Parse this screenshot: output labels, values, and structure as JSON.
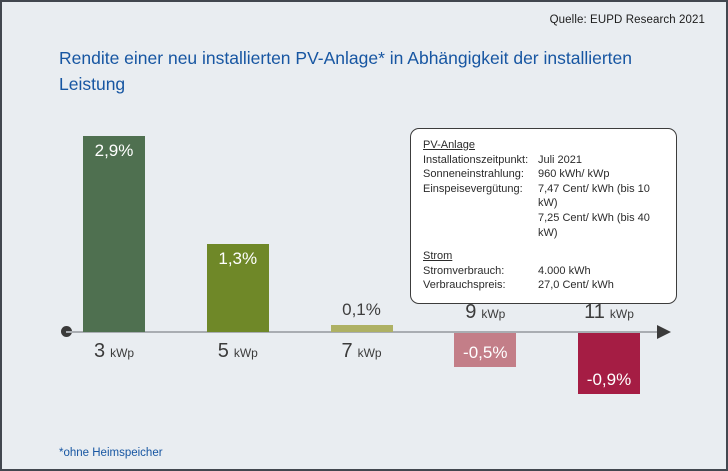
{
  "source": "Quelle: EUPD Research 2021",
  "title": "Rendite einer neu installierten PV-Anlage* in Abhängigkeit der installierten Leistung",
  "footnote": "*ohne Heimspeicher",
  "colors": {
    "background": "#e9edf1",
    "frame_border": "#42474f",
    "title_text": "#1756a2",
    "axis_line": "#a9adb2",
    "axis_marker": "#3a3a3a",
    "category_text": "#3b3b3b",
    "value_label_light": "#ffffff",
    "value_label_dark": "#3e3e3e"
  },
  "chart_data": {
    "type": "bar",
    "title": "Rendite einer neu installierten PV-Anlage* in Abhängigkeit der installierten Leistung",
    "categories": [
      "3 kWp",
      "5 kWp",
      "7 kWp",
      "9 kWp",
      "11 kWp"
    ],
    "category_numbers": [
      "3",
      "5",
      "7",
      "9",
      "11"
    ],
    "category_unit": "kWp",
    "values": [
      2.9,
      1.3,
      0.1,
      -0.5,
      -0.9
    ],
    "value_labels": [
      "2,9%",
      "1,3%",
      "0,1%",
      "-0,5%",
      "-0,9%"
    ],
    "bar_colors": [
      "#4f7050",
      "#6f8828",
      "#aeb164",
      "#c37e88",
      "#a51d44"
    ],
    "xlabel": "",
    "ylabel": "",
    "ylim": [
      -1,
      3
    ],
    "grid": false,
    "legend": "none",
    "axis": {
      "baseline_value": 0,
      "arrow_right": true,
      "origin_dot": true
    }
  },
  "info_box": {
    "sections": [
      {
        "heading": "PV-Anlage",
        "rows": [
          {
            "label": "Installationszeitpunkt:",
            "value": "Juli 2021"
          },
          {
            "label": "Sonneneinstrahlung:",
            "value": "960 kWh/ kWp"
          },
          {
            "label": "Einspeisevergütung:",
            "value": "7,47 Cent/ kWh (bis 10 kW)"
          },
          {
            "label": "",
            "value": "7,25 Cent/ kWh (bis 40 kW)"
          }
        ]
      },
      {
        "heading": "Strom",
        "rows": [
          {
            "label": "Stromverbrauch:",
            "value": "4.000 kWh"
          },
          {
            "label": "Verbrauchspreis:",
            "value": "27,0 Cent/ kWh"
          }
        ]
      }
    ]
  }
}
